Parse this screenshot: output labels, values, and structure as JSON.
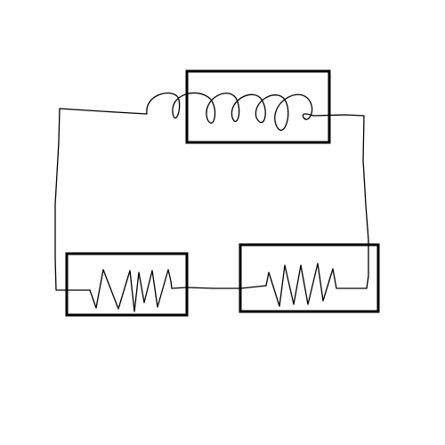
{
  "diagram": {
    "kind": "hand-drawn circuit sketch",
    "components": [
      {
        "id": "inductor",
        "symbol": "coil-icon",
        "enclosed": true
      },
      {
        "id": "resistor-left",
        "symbol": "zigzag-resistor-icon",
        "enclosed": true
      },
      {
        "id": "resistor-right",
        "symbol": "zigzag-resistor-icon",
        "enclosed": true
      }
    ],
    "connection": "series loop",
    "colors": {
      "background": "#ffffff",
      "stroke": "#000000"
    }
  }
}
